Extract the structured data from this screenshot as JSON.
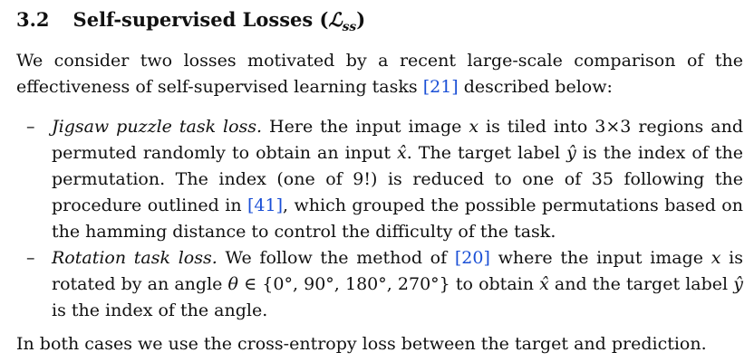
{
  "section": {
    "number": "3.2",
    "title": "Self-supervised Losses (",
    "symbol": "ℒ",
    "symbol_sub": "ss",
    "title_close": ")"
  },
  "intro": {
    "text_before_ref": "We consider two losses motivated by a recent large-scale comparison of the effectiveness of self-supervised learning tasks ",
    "ref": "[21]",
    "text_after_ref": " described below:"
  },
  "bullets": [
    {
      "dash": "–",
      "lead": "Jigsaw puzzle task loss.",
      "text_1": " Here the input image ",
      "math_1": "x",
      "text_2": " is tiled into 3×3 regions and permuted randomly to obtain an input ",
      "math_2": "x̂",
      "text_3": ". The target label ",
      "math_3": "ŷ",
      "text_4": " is the index of the permutation. The index (one of 9!) is reduced to one of 35 following the procedure outlined in ",
      "ref": "[41]",
      "text_5": ", which grouped the possible permutations based on the hamming distance to control the difficulty of the task."
    },
    {
      "dash": "–",
      "lead": "Rotation task loss.",
      "text_1": " We follow the method of ",
      "ref": "[20]",
      "text_2": " where the input image ",
      "math_1": "x",
      "text_3": " is rotated by an angle ",
      "math_2": "θ",
      "text_4": " ∈ {0°, 90°, 180°, 270°} to obtain ",
      "math_3": "x̂",
      "text_5": " and the target label ",
      "math_4": "ŷ",
      "text_6": " is the index of the angle."
    }
  ],
  "closing": {
    "text": "In both cases we use the cross-entropy loss between the target and prediction."
  },
  "colors": {
    "text": "#111111",
    "reference_link": "#1a4fd6",
    "background": "#ffffff"
  }
}
